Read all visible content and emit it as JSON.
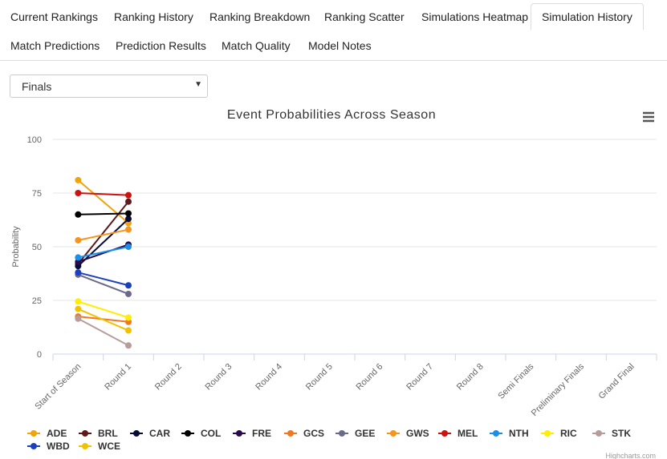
{
  "tabs": [
    "Current Rankings",
    "Ranking History",
    "Ranking Breakdown",
    "Ranking Scatter",
    "Simulations Heatmap",
    "Simulation History",
    "Match Predictions",
    "Prediction Results",
    "Match Quality",
    "Model Notes"
  ],
  "active_tab": 5,
  "dropdown": {
    "selected": "Finals"
  },
  "credit": "Highcharts.com",
  "chart_data": {
    "type": "line",
    "title": "Event Probabilities Across Season",
    "y_label": "Probability",
    "categories": [
      "Start of Season",
      "Round 1",
      "Round 2",
      "Round 3",
      "Round 4",
      "Round 5",
      "Round 6",
      "Round 7",
      "Round 8",
      "Semi Finals",
      "Preliminary Finals",
      "Grand Final"
    ],
    "ylim": [
      0,
      100
    ],
    "yticks": [
      0,
      25,
      50,
      75,
      100
    ],
    "grid": true,
    "series": [
      {
        "name": "ADE",
        "color": "#f0a30a",
        "values": [
          81,
          61,
          null,
          null,
          null,
          null,
          null,
          null,
          null,
          null,
          null,
          null
        ]
      },
      {
        "name": "BRL",
        "color": "#5c1a1a",
        "values": [
          42,
          71,
          null,
          null,
          null,
          null,
          null,
          null,
          null,
          null,
          null,
          null
        ]
      },
      {
        "name": "CAR",
        "color": "#0a0a3a",
        "values": [
          41,
          63,
          null,
          null,
          null,
          null,
          null,
          null,
          null,
          null,
          null,
          null
        ]
      },
      {
        "name": "COL",
        "color": "#000000",
        "values": [
          65,
          65.5,
          null,
          null,
          null,
          null,
          null,
          null,
          null,
          null,
          null,
          null
        ]
      },
      {
        "name": "FRE",
        "color": "#2a0a4a",
        "values": [
          43,
          51,
          null,
          null,
          null,
          null,
          null,
          null,
          null,
          null,
          null,
          null
        ]
      },
      {
        "name": "GCS",
        "color": "#f07820",
        "values": [
          17.5,
          15,
          null,
          null,
          null,
          null,
          null,
          null,
          null,
          null,
          null,
          null
        ]
      },
      {
        "name": "GEE",
        "color": "#6a6a8a",
        "values": [
          37,
          28,
          null,
          null,
          null,
          null,
          null,
          null,
          null,
          null,
          null,
          null
        ]
      },
      {
        "name": "GWS",
        "color": "#f7941d",
        "values": [
          53,
          58,
          null,
          null,
          null,
          null,
          null,
          null,
          null,
          null,
          null,
          null
        ]
      },
      {
        "name": "MEL",
        "color": "#cc1111",
        "values": [
          75,
          74,
          null,
          null,
          null,
          null,
          null,
          null,
          null,
          null,
          null,
          null
        ]
      },
      {
        "name": "NTH",
        "color": "#1a8fe8",
        "values": [
          45,
          50,
          null,
          null,
          null,
          null,
          null,
          null,
          null,
          null,
          null,
          null
        ]
      },
      {
        "name": "RIC",
        "color": "#ffee00",
        "values": [
          24.5,
          17,
          null,
          null,
          null,
          null,
          null,
          null,
          null,
          null,
          null,
          null
        ]
      },
      {
        "name": "STK",
        "color": "#b89c9c",
        "values": [
          16.5,
          4,
          null,
          null,
          null,
          null,
          null,
          null,
          null,
          null,
          null,
          null
        ]
      },
      {
        "name": "WBD",
        "color": "#1a3fbf",
        "values": [
          38,
          32,
          null,
          null,
          null,
          null,
          null,
          null,
          null,
          null,
          null,
          null
        ]
      },
      {
        "name": "WCE",
        "color": "#f2c200",
        "values": [
          21,
          11,
          null,
          null,
          null,
          null,
          null,
          null,
          null,
          null,
          null,
          null
        ]
      }
    ]
  }
}
